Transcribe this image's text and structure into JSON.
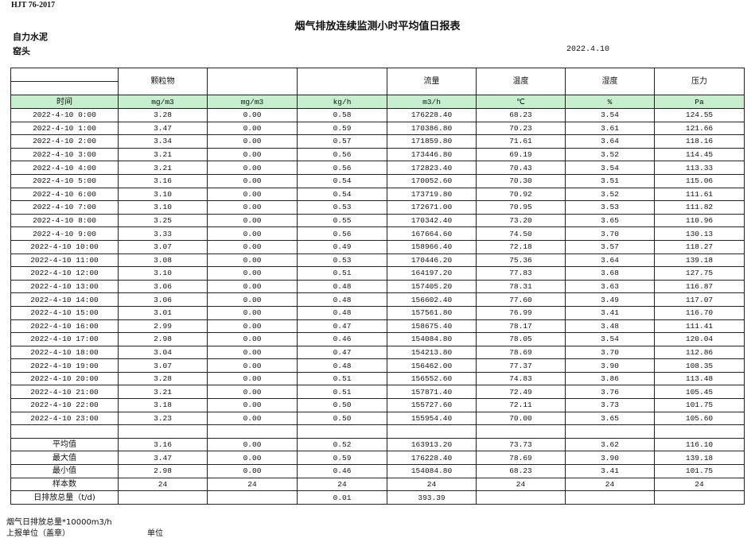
{
  "header": {
    "standard": "HJT  76-2017",
    "title": "烟气排放连续监测小时平均值日报表",
    "organization": "自力水泥",
    "location": "窑头",
    "date": "2022.4.10"
  },
  "table": {
    "columns": [
      "",
      "颗粒物",
      "",
      "",
      "流量",
      "温度",
      "湿度",
      "压力"
    ],
    "units": [
      "时间",
      "mg/m3",
      "mg/m3",
      "kg/h",
      "m3/h",
      "℃",
      "%",
      "Pa"
    ],
    "unit_row_color": "#c6efce",
    "rows": [
      [
        "2022-4-10 0:00",
        "3.28",
        "0.00",
        "0.58",
        "176228.40",
        "68.23",
        "3.54",
        "124.55"
      ],
      [
        "2022-4-10 1:00",
        "3.47",
        "0.00",
        "0.59",
        "170386.80",
        "70.23",
        "3.61",
        "121.66"
      ],
      [
        "2022-4-10 2:00",
        "3.34",
        "0.00",
        "0.57",
        "171859.80",
        "71.61",
        "3.64",
        "118.16"
      ],
      [
        "2022-4-10 3:00",
        "3.21",
        "0.00",
        "0.56",
        "173446.80",
        "69.19",
        "3.52",
        "114.45"
      ],
      [
        "2022-4-10 4:00",
        "3.21",
        "0.00",
        "0.56",
        "172823.40",
        "70.43",
        "3.54",
        "113.33"
      ],
      [
        "2022-4-10 5:00",
        "3.16",
        "0.00",
        "0.54",
        "170052.60",
        "70.30",
        "3.51",
        "115.06"
      ],
      [
        "2022-4-10 6:00",
        "3.10",
        "0.00",
        "0.54",
        "173719.80",
        "70.92",
        "3.52",
        "111.61"
      ],
      [
        "2022-4-10 7:00",
        "3.10",
        "0.00",
        "0.53",
        "172671.00",
        "70.95",
        "3.53",
        "111.82"
      ],
      [
        "2022-4-10 8:00",
        "3.25",
        "0.00",
        "0.55",
        "170342.40",
        "73.20",
        "3.65",
        "110.96"
      ],
      [
        "2022-4-10 9:00",
        "3.33",
        "0.00",
        "0.56",
        "167664.60",
        "74.50",
        "3.70",
        "130.13"
      ],
      [
        "2022-4-10 10:00",
        "3.07",
        "0.00",
        "0.49",
        "158966.40",
        "72.18",
        "3.57",
        "118.27"
      ],
      [
        "2022-4-10 11:00",
        "3.08",
        "0.00",
        "0.53",
        "170446.20",
        "75.36",
        "3.64",
        "139.18"
      ],
      [
        "2022-4-10 12:00",
        "3.10",
        "0.00",
        "0.51",
        "164197.20",
        "77.83",
        "3.68",
        "127.75"
      ],
      [
        "2022-4-10 13:00",
        "3.06",
        "0.00",
        "0.48",
        "157405.20",
        "78.31",
        "3.63",
        "116.87"
      ],
      [
        "2022-4-10 14:00",
        "3.06",
        "0.00",
        "0.48",
        "156602.40",
        "77.60",
        "3.49",
        "117.07"
      ],
      [
        "2022-4-10 15:00",
        "3.01",
        "0.00",
        "0.48",
        "157561.80",
        "76.99",
        "3.41",
        "116.70"
      ],
      [
        "2022-4-10 16:00",
        "2.99",
        "0.00",
        "0.47",
        "158675.40",
        "78.17",
        "3.48",
        "111.41"
      ],
      [
        "2022-4-10 17:00",
        "2.98",
        "0.00",
        "0.46",
        "154084.80",
        "78.05",
        "3.54",
        "120.04"
      ],
      [
        "2022-4-10 18:00",
        "3.04",
        "0.00",
        "0.47",
        "154213.80",
        "78.69",
        "3.70",
        "112.86"
      ],
      [
        "2022-4-10 19:00",
        "3.07",
        "0.00",
        "0.48",
        "156462.00",
        "77.37",
        "3.90",
        "108.35"
      ],
      [
        "2022-4-10 20:00",
        "3.28",
        "0.00",
        "0.51",
        "156552.60",
        "74.83",
        "3.86",
        "113.48"
      ],
      [
        "2022-4-10 21:00",
        "3.21",
        "0.00",
        "0.51",
        "157871.40",
        "72.49",
        "3.76",
        "105.45"
      ],
      [
        "2022-4-10 22:00",
        "3.18",
        "0.00",
        "0.50",
        "155727.60",
        "72.11",
        "3.73",
        "101.75"
      ],
      [
        "2022-4-10 23:00",
        "3.23",
        "0.00",
        "0.50",
        "155954.40",
        "70.00",
        "3.65",
        "105.60"
      ]
    ],
    "summary": [
      [
        "平均值",
        "3.16",
        "0.00",
        "0.52",
        "163913.20",
        "73.73",
        "3.62",
        "116.10"
      ],
      [
        "最大值",
        "3.47",
        "0.00",
        "0.59",
        "176228.40",
        "78.69",
        "3.90",
        "139.18"
      ],
      [
        "最小值",
        "2.98",
        "0.00",
        "0.46",
        "154084.80",
        "68.23",
        "3.41",
        "101.75"
      ],
      [
        "样本数",
        "24",
        "24",
        "24",
        "24",
        "24",
        "24",
        "24"
      ],
      [
        "日排放总量（t/d)",
        "",
        "",
        "0.01",
        "393.39",
        "",
        "",
        ""
      ]
    ]
  },
  "footer": {
    "note": "烟气日排放总量*10000m3/h",
    "reporter": "上报单位（盖章）",
    "unit": "单位"
  }
}
